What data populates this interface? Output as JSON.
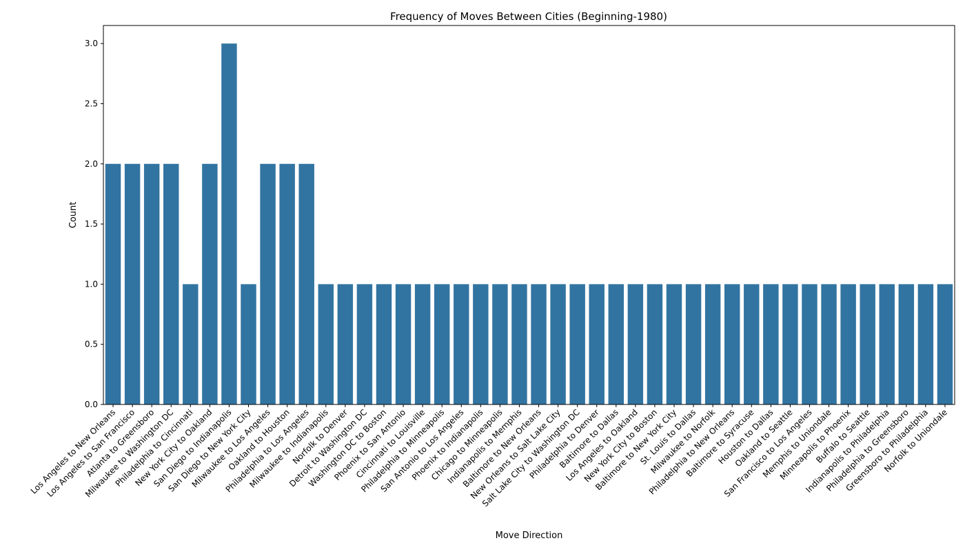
{
  "chart_data": {
    "type": "bar",
    "title": "Frequency of Moves Between Cities (Beginning-1980)",
    "xlabel": "Move Direction",
    "ylabel": "Count",
    "ylim": [
      0,
      3.15
    ],
    "yticks": [
      "0.0",
      "0.5",
      "1.0",
      "1.5",
      "2.0",
      "2.5",
      "3.0"
    ],
    "ytick_values": [
      0,
      0.5,
      1.0,
      1.5,
      2.0,
      2.5,
      3.0
    ],
    "grid": false,
    "bar_color": "#3274a1",
    "categories": [
      "Los Angeles to New Orleans",
      "Los Angeles to San Francisco",
      "Atlanta to Greensboro",
      "Milwaukee to Washington DC",
      "Philadelphia to Cincinnati",
      "New York City to Oakland",
      "San Diego to Indianapolis",
      "San Diego to New York City",
      "Milwaukee to Los Angeles",
      "Oakland to Houston",
      "Philadelphia to Los Angeles",
      "Milwaukee to Indianapolis",
      "Norfolk to Denver",
      "Detroit to Washington DC",
      "Washington DC to Boston",
      "Phoenix to San Antonio",
      "Cincinnati to Louisville",
      "Philadelphia to Minneapolis",
      "San Antonio to Los Angeles",
      "Phoenix to Indianapolis",
      "Chicago to Minneapolis",
      "Indianapolis to Memphis",
      "Baltimore to New Orleans",
      "New Orleans to Salt Lake City",
      "Salt Lake City to Washington DC",
      "Philadelphia to Denver",
      "Baltimore to Dallas",
      "Los Angeles to Oakland",
      "New York City to Boston",
      "Baltimore to New York City",
      "St. Louis to Dallas",
      "Milwaukee to Norfolk",
      "Philadelphia to New Orleans",
      "Baltimore to Syracuse",
      "Houston to Dallas",
      "Oakland to Seattle",
      "San Francisco to Los Angeles",
      "Memphis to Uniondale",
      "Minneapolis to Phoenix",
      "Buffalo to Seattle",
      "Indianapolis to Philadelphia",
      "Philadelphia to Greensboro",
      "Greensboro to Philadelphia",
      "Norfolk to Uniondale"
    ],
    "values": [
      2,
      2,
      2,
      2,
      1,
      2,
      3,
      1,
      2,
      2,
      2,
      1,
      1,
      1,
      1,
      1,
      1,
      1,
      1,
      1,
      1,
      1,
      1,
      1,
      1,
      1,
      1,
      1,
      1,
      1,
      1,
      1,
      1,
      1,
      1,
      1,
      1,
      1,
      1,
      1,
      1,
      1,
      1,
      1
    ]
  }
}
